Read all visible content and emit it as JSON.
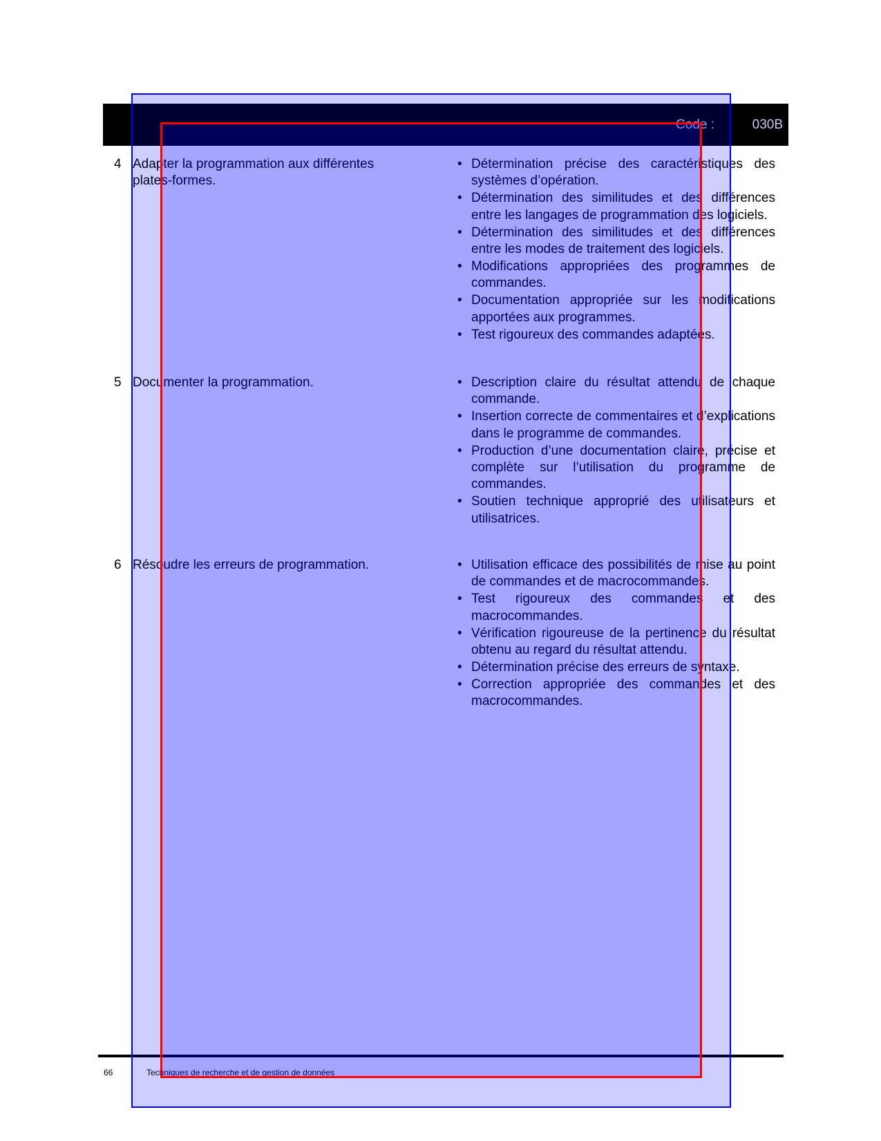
{
  "header": {
    "code_label": "Code :",
    "code_value": "030B"
  },
  "rows": [
    {
      "number": "4",
      "task": "Adapter la programmation aux différentes plates-formes.",
      "criteria": [
        "Détermination précise des caractéristiques des systèmes d’opération.",
        "Détermination des similitudes et des différences entre les langages de programmation des logiciels.",
        "Détermination des similitudes et des différences entre les modes de traitement des logiciels.",
        "Modifications appropriées des programmes de commandes.",
        "Documentation appropriée sur les modifications apportées aux programmes.",
        "Test rigoureux des commandes adaptées."
      ]
    },
    {
      "number": "5",
      "task": "Documenter la programmation.",
      "criteria": [
        "Description claire du résultat attendu de chaque commande.",
        "Insertion correcte de commentaires et d’explications dans le programme de commandes.",
        "Production d’une documentation claire, précise et complète sur l’utilisation du programme de commandes.",
        "Soutien technique approprié des utilisateurs et utilisatrices."
      ]
    },
    {
      "number": "6",
      "task": "Résoudre les erreurs de programmation.",
      "criteria": [
        "Utilisation efficace des possibilités de mise au point de commandes et de macrocommandes.",
        "Test rigoureux des commandes et des macrocommandes.",
        "Vérification rigoureuse de la pertinence du résultat obtenu au regard du résultat attendu.",
        "Détermination précise des erreurs de syntaxe.",
        "Correction appropriée des commandes et des macrocommandes."
      ]
    }
  ],
  "footer": {
    "page_number": "66",
    "title": "Techniques de recherche et de gestion de données"
  }
}
